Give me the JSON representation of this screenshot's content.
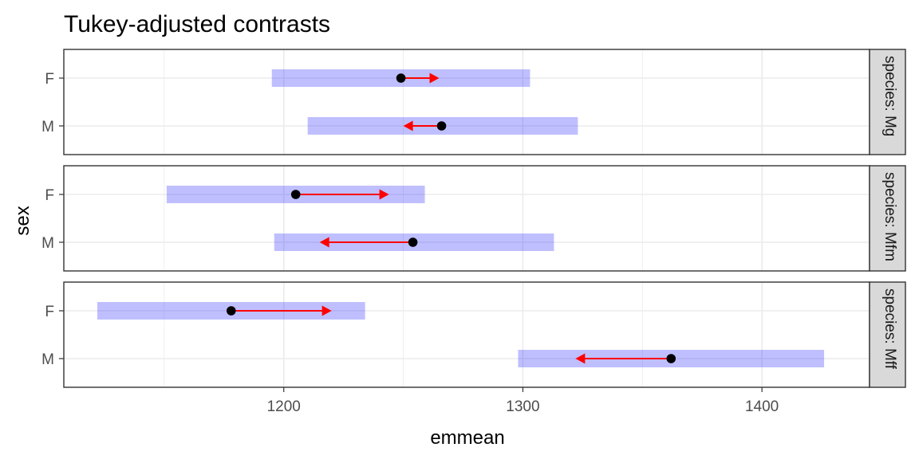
{
  "chart_data": {
    "type": "scatter",
    "title": "Tukey-adjusted contrasts",
    "xlabel": "emmean",
    "ylabel": "sex",
    "xlim": [
      1108,
      1445
    ],
    "xticks": [
      1200,
      1300,
      1400
    ],
    "levels": [
      "F",
      "M"
    ],
    "grid": true,
    "colors": {
      "ci_band": "#0000ff",
      "arrow": "#ff0000",
      "point": "#000000",
      "strip": "#d9d9d9"
    },
    "panels": [
      {
        "strip": "species: Mg",
        "rows": [
          {
            "sex": "F",
            "emmean": 1249,
            "lower": 1195,
            "upper": 1303,
            "arrow_to": 1265
          },
          {
            "sex": "M",
            "emmean": 1266,
            "lower": 1210,
            "upper": 1323,
            "arrow_to": 1250
          }
        ]
      },
      {
        "strip": "species: Mfm",
        "rows": [
          {
            "sex": "F",
            "emmean": 1205,
            "lower": 1151,
            "upper": 1259,
            "arrow_to": 1244
          },
          {
            "sex": "M",
            "emmean": 1254,
            "lower": 1196,
            "upper": 1313,
            "arrow_to": 1215
          }
        ]
      },
      {
        "strip": "species: Mff",
        "rows": [
          {
            "sex": "F",
            "emmean": 1178,
            "lower": 1122,
            "upper": 1234,
            "arrow_to": 1220
          },
          {
            "sex": "M",
            "emmean": 1362,
            "lower": 1298,
            "upper": 1426,
            "arrow_to": 1322
          }
        ]
      }
    ]
  }
}
